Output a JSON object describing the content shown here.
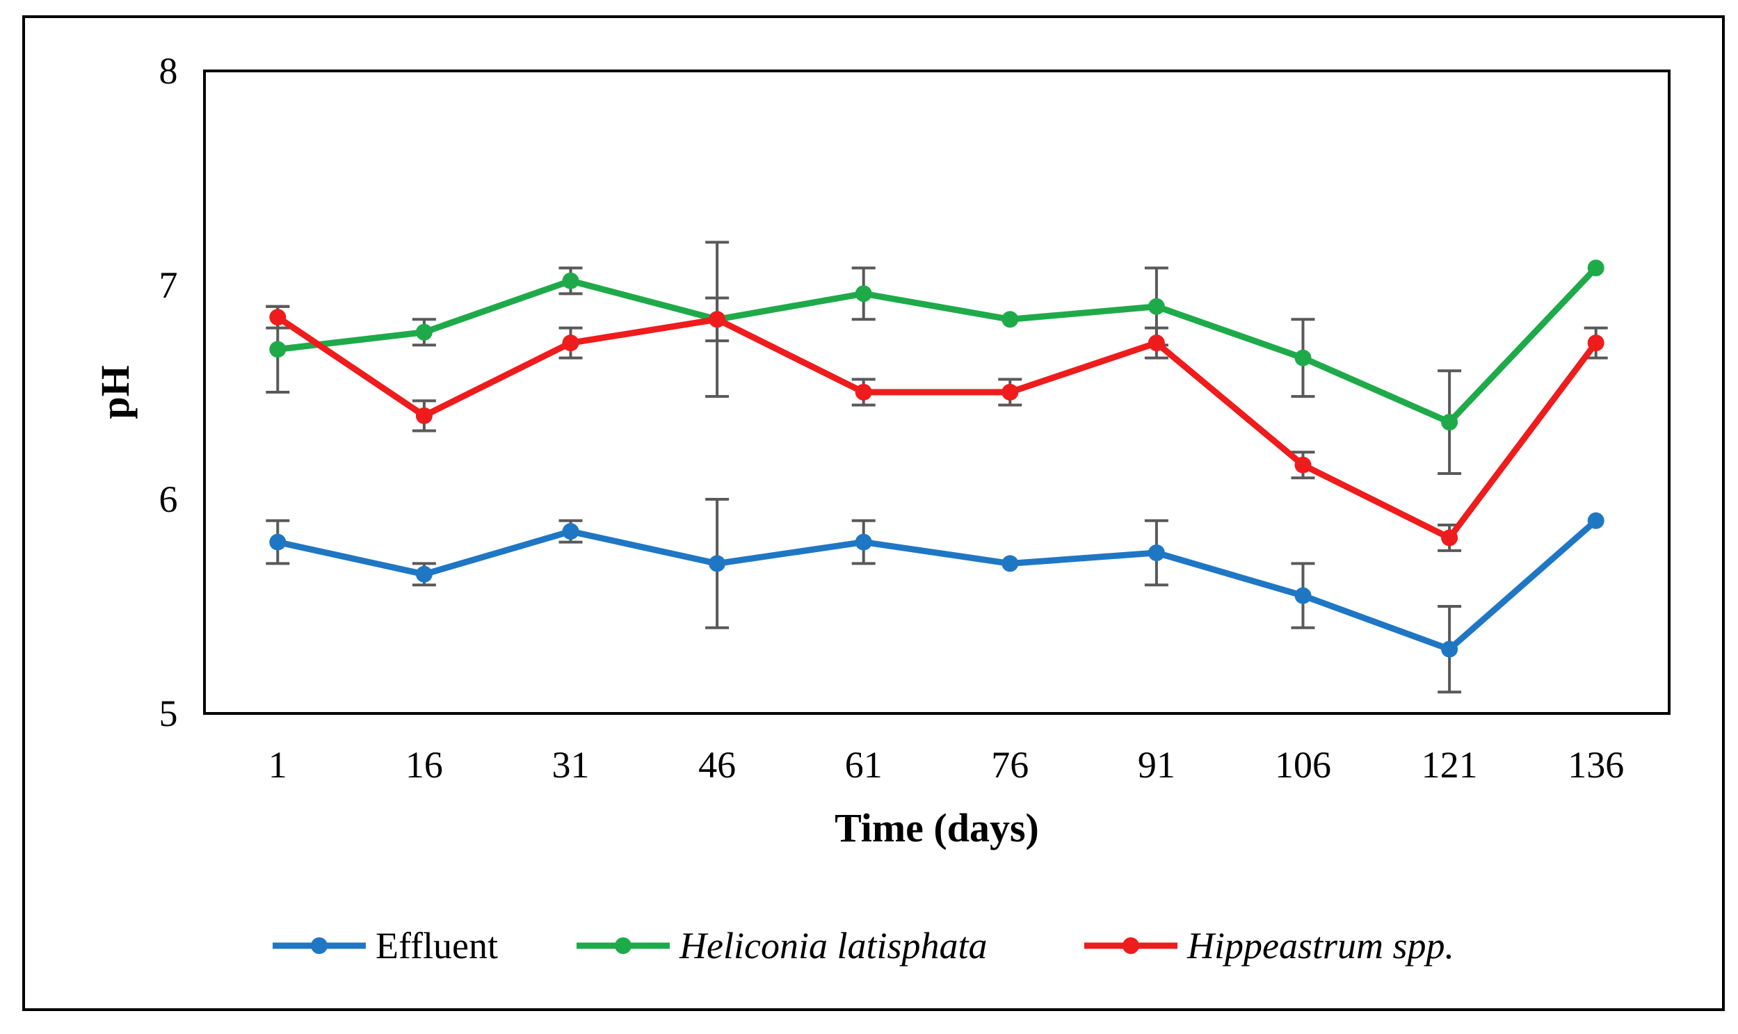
{
  "chart_data": {
    "type": "line",
    "title": "",
    "xlabel": "Time (days)",
    "ylabel": "pH",
    "categories": [
      "1",
      "16",
      "31",
      "46",
      "61",
      "76",
      "91",
      "106",
      "121",
      "136"
    ],
    "ylim": [
      5,
      8
    ],
    "yticks": [
      "5",
      "6",
      "7",
      "8"
    ],
    "ytick_values": [
      5,
      6,
      7,
      8
    ],
    "grid": false,
    "legend_position": "bottom",
    "series": [
      {
        "name": "Effluent",
        "italic": false,
        "color": "#1f77c4",
        "values": [
          5.8,
          5.65,
          5.85,
          5.7,
          5.8,
          5.7,
          5.75,
          5.55,
          5.3,
          5.9
        ],
        "errors": [
          0.1,
          0.05,
          0.05,
          0.3,
          0.1,
          0.0,
          0.15,
          0.15,
          0.2,
          0.0
        ]
      },
      {
        "name": "Heliconia latisphata",
        "italic": true,
        "color": "#1faa4a",
        "values": [
          6.7,
          6.78,
          7.02,
          6.84,
          6.96,
          6.84,
          6.9,
          6.66,
          6.36,
          7.08
        ],
        "errors": [
          0.2,
          0.06,
          0.06,
          0.36,
          0.12,
          0.0,
          0.18,
          0.18,
          0.24,
          0.0
        ]
      },
      {
        "name": "Hippeastrum spp.",
        "italic": true,
        "color": "#ee1c1c",
        "values": [
          6.85,
          6.39,
          6.73,
          6.84,
          6.5,
          6.5,
          6.73,
          6.16,
          5.82,
          6.73
        ],
        "errors": [
          0.05,
          0.07,
          0.07,
          0.1,
          0.06,
          0.06,
          0.07,
          0.06,
          0.06,
          0.07
        ]
      }
    ]
  }
}
